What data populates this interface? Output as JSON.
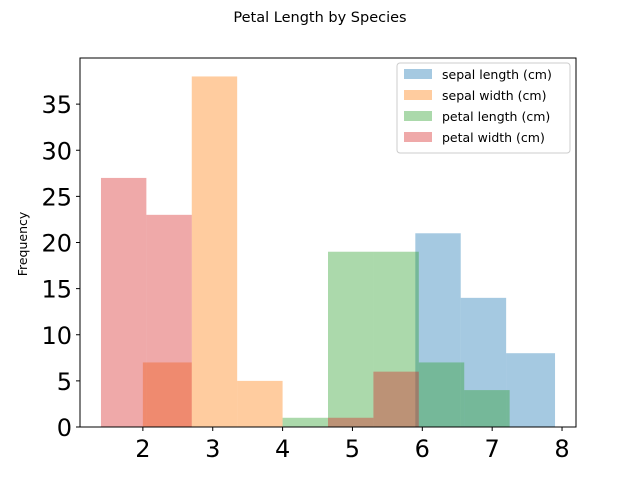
{
  "chart_data": {
    "type": "bar",
    "title": "Petal Length by Species",
    "xlabel": "",
    "ylabel": "Frequency",
    "xlim": [
      1.1,
      8.2
    ],
    "ylim": [
      0,
      40
    ],
    "xticks": [
      2,
      3,
      4,
      5,
      6,
      7,
      8
    ],
    "yticks": [
      0,
      5,
      10,
      15,
      20,
      25,
      30,
      35
    ],
    "grid": false,
    "legend_position": "top-right",
    "series": [
      {
        "name": "sepal length (cm)",
        "color": "#1f77b4",
        "opacity": 0.4,
        "bins": [
          [
            5.9,
            6.55,
            21
          ],
          [
            6.55,
            7.2,
            14
          ],
          [
            7.2,
            7.9,
            8
          ]
        ]
      },
      {
        "name": "sepal width (cm)",
        "color": "#ff7f0e",
        "opacity": 0.4,
        "bins": [
          [
            2.0,
            2.7,
            7
          ],
          [
            2.7,
            3.35,
            38
          ],
          [
            3.35,
            4.0,
            5
          ]
        ]
      },
      {
        "name": "petal length (cm)",
        "color": "#2ca02c",
        "opacity": 0.4,
        "bins": [
          [
            4.0,
            4.65,
            1
          ],
          [
            4.65,
            5.3,
            19
          ],
          [
            5.3,
            5.95,
            19
          ],
          [
            5.95,
            6.6,
            7
          ],
          [
            6.6,
            7.25,
            4
          ]
        ]
      },
      {
        "name": "petal width (cm)",
        "color": "#d62728",
        "opacity": 0.4,
        "bins": [
          [
            1.4,
            2.05,
            27
          ],
          [
            2.05,
            2.7,
            23
          ],
          [
            4.65,
            5.3,
            1
          ],
          [
            5.3,
            5.95,
            6
          ]
        ]
      }
    ]
  }
}
